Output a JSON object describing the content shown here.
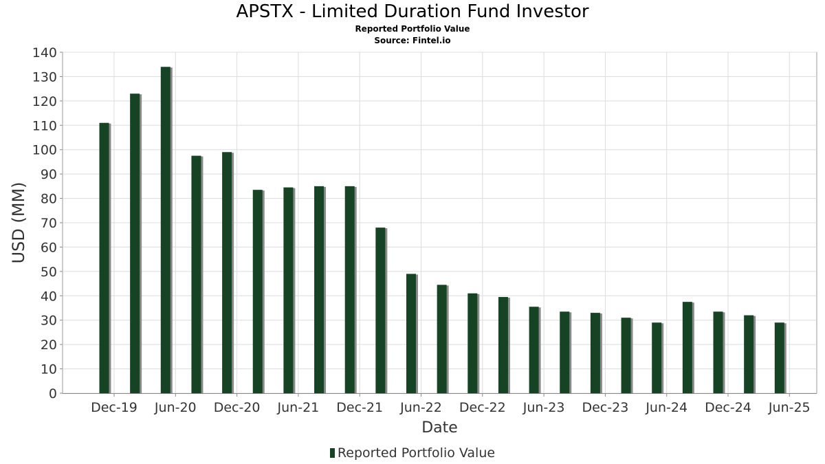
{
  "title": "APSTX - Limited Duration Fund Investor",
  "subtitle": "Reported Portfolio Value",
  "source": "Source: Fintel.io",
  "colors": {
    "bar": "#174325",
    "bar_shadow": "#8a8a8a",
    "grid": "#dcdcdc",
    "axis_text": "#333333"
  },
  "chart_data": {
    "type": "bar",
    "title": "APSTX - Limited Duration Fund Investor",
    "subtitle": "Reported Portfolio Value",
    "xlabel": "Date",
    "ylabel": "USD (MM)",
    "ylim": [
      0,
      140
    ],
    "yticks": [
      0,
      10,
      20,
      30,
      40,
      50,
      60,
      70,
      80,
      90,
      100,
      110,
      120,
      130,
      140
    ],
    "xticks": [
      "Dec-19",
      "Jun-20",
      "Dec-20",
      "Jun-21",
      "Dec-21",
      "Jun-22",
      "Dec-22",
      "Jun-23",
      "Dec-23",
      "Jun-24",
      "Dec-24",
      "Jun-25"
    ],
    "grid": true,
    "legend_position": "bottom",
    "series": [
      {
        "name": "Reported Portfolio Value",
        "values": [
          111,
          123,
          134,
          97.5,
          99,
          83.5,
          84.5,
          85,
          85,
          68,
          49,
          44.5,
          41,
          39.5,
          35.5,
          33.5,
          33,
          31,
          29,
          37.5,
          33.5,
          32,
          29
        ]
      }
    ]
  }
}
